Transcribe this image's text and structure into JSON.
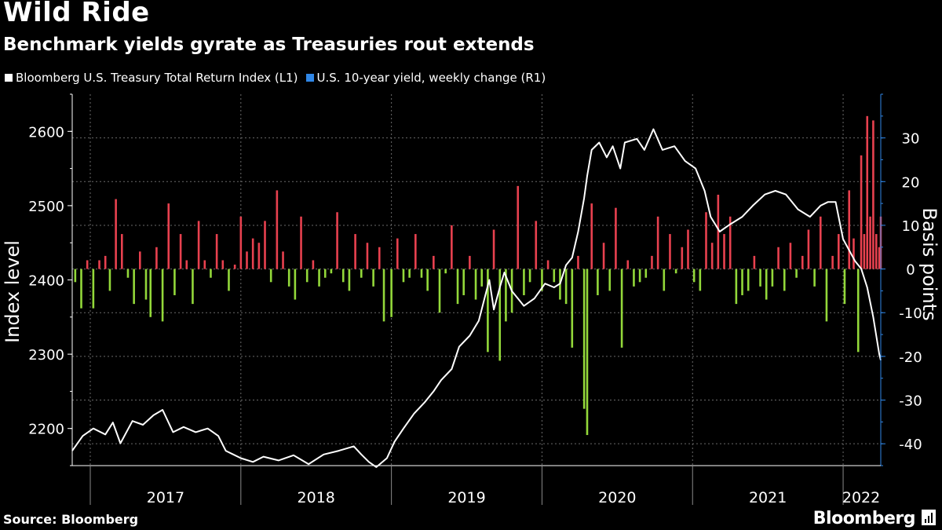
{
  "title": "Wild Ride",
  "subtitle": "Benchmark yields gyrate as Treasuries rout extends",
  "source": "Source: Bloomberg",
  "brand": "Bloomberg",
  "colors": {
    "background": "#000000",
    "index_line": "#ffffff",
    "legend_yield": "#2f86e6",
    "bar_positive": "#e8414f",
    "bar_negative": "#93d83a",
    "right_axis": "#2f86e6"
  },
  "chart_data": {
    "type": "line+bar",
    "legend": [
      {
        "name": "Bloomberg U.S. Treasury Total Return Index (L1)",
        "color": "#ffffff"
      },
      {
        "name": "U.S. 10-year yield, weekly change (R1)",
        "color": "#2f86e6"
      }
    ],
    "x_range": [
      2016.88,
      2022.25
    ],
    "years": [
      {
        "label": "2017",
        "center": 2017.5
      },
      {
        "label": "2018",
        "center": 2018.5
      },
      {
        "label": "2019",
        "center": 2019.5
      },
      {
        "label": "2020",
        "center": 2020.5
      },
      {
        "label": "2021",
        "center": 2021.5
      },
      {
        "label": "2022",
        "center": 2022.12
      }
    ],
    "left_axis": {
      "label": "Index level",
      "ylim": [
        2150,
        2650
      ],
      "ticks": [
        2200,
        2300,
        2400,
        2500,
        2600
      ]
    },
    "right_axis": {
      "label": "Basis points",
      "ylim": [
        -45,
        40
      ],
      "ticks": [
        -40,
        -30,
        -20,
        -10,
        0,
        10,
        20,
        30
      ]
    },
    "index_series": {
      "name": "Bloomberg U.S. Treasury Total Return Index (L1)",
      "points": [
        [
          2016.88,
          2170
        ],
        [
          2016.95,
          2190
        ],
        [
          2017.02,
          2200
        ],
        [
          2017.1,
          2192
        ],
        [
          2017.15,
          2208
        ],
        [
          2017.2,
          2180
        ],
        [
          2017.28,
          2210
        ],
        [
          2017.35,
          2205
        ],
        [
          2017.42,
          2218
        ],
        [
          2017.48,
          2225
        ],
        [
          2017.55,
          2195
        ],
        [
          2017.62,
          2202
        ],
        [
          2017.7,
          2195
        ],
        [
          2017.78,
          2200
        ],
        [
          2017.85,
          2190
        ],
        [
          2017.9,
          2170
        ],
        [
          2017.95,
          2165
        ],
        [
          2018.0,
          2160
        ],
        [
          2018.08,
          2155
        ],
        [
          2018.15,
          2162
        ],
        [
          2018.25,
          2157
        ],
        [
          2018.35,
          2164
        ],
        [
          2018.45,
          2152
        ],
        [
          2018.55,
          2165
        ],
        [
          2018.65,
          2170
        ],
        [
          2018.75,
          2176
        ],
        [
          2018.8,
          2165
        ],
        [
          2018.85,
          2155
        ],
        [
          2018.9,
          2148
        ],
        [
          2018.97,
          2160
        ],
        [
          2019.02,
          2182
        ],
        [
          2019.08,
          2200
        ],
        [
          2019.15,
          2220
        ],
        [
          2019.22,
          2235
        ],
        [
          2019.28,
          2250
        ],
        [
          2019.33,
          2265
        ],
        [
          2019.4,
          2280
        ],
        [
          2019.45,
          2310
        ],
        [
          2019.52,
          2325
        ],
        [
          2019.58,
          2345
        ],
        [
          2019.65,
          2400
        ],
        [
          2019.68,
          2360
        ],
        [
          2019.72,
          2390
        ],
        [
          2019.75,
          2410
        ],
        [
          2019.8,
          2385
        ],
        [
          2019.88,
          2365
        ],
        [
          2019.95,
          2375
        ],
        [
          2020.02,
          2395
        ],
        [
          2020.08,
          2390
        ],
        [
          2020.12,
          2395
        ],
        [
          2020.16,
          2420
        ],
        [
          2020.2,
          2430
        ],
        [
          2020.24,
          2465
        ],
        [
          2020.28,
          2510
        ],
        [
          2020.3,
          2540
        ],
        [
          2020.33,
          2575
        ],
        [
          2020.38,
          2585
        ],
        [
          2020.43,
          2565
        ],
        [
          2020.47,
          2580
        ],
        [
          2020.52,
          2550
        ],
        [
          2020.55,
          2585
        ],
        [
          2020.63,
          2590
        ],
        [
          2020.68,
          2575
        ],
        [
          2020.74,
          2603
        ],
        [
          2020.8,
          2575
        ],
        [
          2020.88,
          2580
        ],
        [
          2020.95,
          2560
        ],
        [
          2021.02,
          2550
        ],
        [
          2021.08,
          2520
        ],
        [
          2021.12,
          2485
        ],
        [
          2021.18,
          2465
        ],
        [
          2021.25,
          2475
        ],
        [
          2021.33,
          2485
        ],
        [
          2021.4,
          2500
        ],
        [
          2021.48,
          2515
        ],
        [
          2021.55,
          2520
        ],
        [
          2021.62,
          2515
        ],
        [
          2021.7,
          2495
        ],
        [
          2021.78,
          2485
        ],
        [
          2021.85,
          2500
        ],
        [
          2021.9,
          2505
        ],
        [
          2021.95,
          2505
        ],
        [
          2022.0,
          2455
        ],
        [
          2022.04,
          2440
        ],
        [
          2022.08,
          2425
        ],
        [
          2022.12,
          2415
        ],
        [
          2022.16,
          2390
        ],
        [
          2022.2,
          2350
        ],
        [
          2022.24,
          2300
        ],
        [
          2022.25,
          2292
        ]
      ]
    },
    "bar_series": {
      "name": "U.S. 10-year yield, weekly change (R1)",
      "points": [
        [
          2016.9,
          -3
        ],
        [
          2016.94,
          -9
        ],
        [
          2016.98,
          2
        ],
        [
          2017.02,
          -9
        ],
        [
          2017.06,
          2
        ],
        [
          2017.1,
          3
        ],
        [
          2017.13,
          -5
        ],
        [
          2017.17,
          16
        ],
        [
          2017.21,
          8
        ],
        [
          2017.25,
          -2
        ],
        [
          2017.29,
          -8
        ],
        [
          2017.33,
          4
        ],
        [
          2017.37,
          -7
        ],
        [
          2017.4,
          -11
        ],
        [
          2017.44,
          5
        ],
        [
          2017.48,
          -12
        ],
        [
          2017.52,
          15
        ],
        [
          2017.56,
          -6
        ],
        [
          2017.6,
          8
        ],
        [
          2017.64,
          2
        ],
        [
          2017.68,
          -8
        ],
        [
          2017.72,
          11
        ],
        [
          2017.76,
          2
        ],
        [
          2017.8,
          -2
        ],
        [
          2017.84,
          8
        ],
        [
          2017.88,
          2
        ],
        [
          2017.92,
          -5
        ],
        [
          2017.96,
          1
        ],
        [
          2018.0,
          12
        ],
        [
          2018.04,
          4
        ],
        [
          2018.08,
          7
        ],
        [
          2018.12,
          6
        ],
        [
          2018.16,
          11
        ],
        [
          2018.2,
          -3
        ],
        [
          2018.24,
          18
        ],
        [
          2018.28,
          4
        ],
        [
          2018.32,
          -4
        ],
        [
          2018.36,
          -7
        ],
        [
          2018.4,
          12
        ],
        [
          2018.44,
          -3
        ],
        [
          2018.48,
          2
        ],
        [
          2018.52,
          -4
        ],
        [
          2018.56,
          -2
        ],
        [
          2018.6,
          -1
        ],
        [
          2018.64,
          13
        ],
        [
          2018.68,
          -3
        ],
        [
          2018.72,
          -5
        ],
        [
          2018.76,
          8
        ],
        [
          2018.8,
          -2
        ],
        [
          2018.84,
          6
        ],
        [
          2018.88,
          -4
        ],
        [
          2018.92,
          5
        ],
        [
          2018.95,
          -12
        ],
        [
          2019.0,
          -11
        ],
        [
          2019.04,
          7
        ],
        [
          2019.08,
          -3
        ],
        [
          2019.12,
          -2
        ],
        [
          2019.16,
          8
        ],
        [
          2019.2,
          -2
        ],
        [
          2019.24,
          -5
        ],
        [
          2019.28,
          3
        ],
        [
          2019.32,
          -10
        ],
        [
          2019.36,
          -1
        ],
        [
          2019.4,
          10
        ],
        [
          2019.44,
          -8
        ],
        [
          2019.48,
          -6
        ],
        [
          2019.52,
          3
        ],
        [
          2019.56,
          -7
        ],
        [
          2019.6,
          -4
        ],
        [
          2019.64,
          -19
        ],
        [
          2019.68,
          9
        ],
        [
          2019.72,
          -21
        ],
        [
          2019.76,
          -12
        ],
        [
          2019.8,
          -10
        ],
        [
          2019.84,
          19
        ],
        [
          2019.88,
          -6
        ],
        [
          2019.92,
          -3
        ],
        [
          2019.96,
          11
        ],
        [
          2020.0,
          -5
        ],
        [
          2020.04,
          2
        ],
        [
          2020.08,
          -3
        ],
        [
          2020.12,
          -7
        ],
        [
          2020.16,
          -8
        ],
        [
          2020.2,
          -18
        ],
        [
          2020.24,
          3
        ],
        [
          2020.28,
          -32
        ],
        [
          2020.3,
          -38
        ],
        [
          2020.33,
          15
        ],
        [
          2020.37,
          -6
        ],
        [
          2020.41,
          6
        ],
        [
          2020.45,
          -5
        ],
        [
          2020.49,
          14
        ],
        [
          2020.53,
          -18
        ],
        [
          2020.57,
          2
        ],
        [
          2020.61,
          -4
        ],
        [
          2020.65,
          -3
        ],
        [
          2020.69,
          -2
        ],
        [
          2020.73,
          3
        ],
        [
          2020.77,
          12
        ],
        [
          2020.81,
          -5
        ],
        [
          2020.85,
          8
        ],
        [
          2020.89,
          -1
        ],
        [
          2020.93,
          5
        ],
        [
          2020.97,
          9
        ],
        [
          2021.01,
          -3
        ],
        [
          2021.05,
          -5
        ],
        [
          2021.09,
          13
        ],
        [
          2021.13,
          6
        ],
        [
          2021.17,
          17
        ],
        [
          2021.21,
          8
        ],
        [
          2021.25,
          12
        ],
        [
          2021.29,
          -8
        ],
        [
          2021.33,
          -6
        ],
        [
          2021.37,
          -5
        ],
        [
          2021.41,
          3
        ],
        [
          2021.45,
          -4
        ],
        [
          2021.49,
          -7
        ],
        [
          2021.53,
          -4
        ],
        [
          2021.57,
          5
        ],
        [
          2021.61,
          -5
        ],
        [
          2021.65,
          6
        ],
        [
          2021.69,
          -2
        ],
        [
          2021.73,
          3
        ],
        [
          2021.77,
          9
        ],
        [
          2021.81,
          -4
        ],
        [
          2021.85,
          12
        ],
        [
          2021.89,
          -12
        ],
        [
          2021.93,
          3
        ],
        [
          2021.97,
          8
        ],
        [
          2022.01,
          -8
        ],
        [
          2022.04,
          18
        ],
        [
          2022.07,
          7
        ],
        [
          2022.1,
          -19
        ],
        [
          2022.12,
          26
        ],
        [
          2022.14,
          8
        ],
        [
          2022.16,
          35
        ],
        [
          2022.18,
          12
        ],
        [
          2022.2,
          34
        ],
        [
          2022.22,
          8
        ],
        [
          2022.24,
          5
        ],
        [
          2022.25,
          12
        ]
      ]
    }
  }
}
